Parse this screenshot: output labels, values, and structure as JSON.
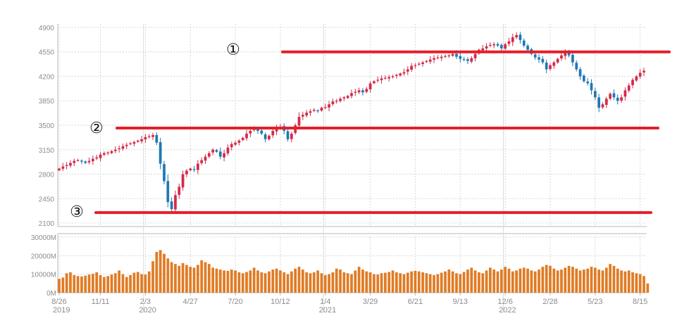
{
  "chart_data": [
    {
      "type": "candlestick",
      "title": "",
      "y_ticks": [
        "4900",
        "4550",
        "4200",
        "3850",
        "3500",
        "3150",
        "2800",
        "2450",
        "2100"
      ],
      "x_ticks": [
        {
          "label": "8/26",
          "year": "2019",
          "i": 0
        },
        {
          "label": "11/11",
          "year": "",
          "i": 11
        },
        {
          "label": "2/3",
          "year": "2020",
          "i": 23
        },
        {
          "label": "4/27",
          "year": "",
          "i": 35
        },
        {
          "label": "7/20",
          "year": "",
          "i": 47
        },
        {
          "label": "10/12",
          "year": "",
          "i": 59
        },
        {
          "label": "1/4",
          "year": "2021",
          "i": 71
        },
        {
          "label": "3/29",
          "year": "",
          "i": 83
        },
        {
          "label": "6/21",
          "year": "",
          "i": 95
        },
        {
          "label": "9/13",
          "year": "",
          "i": 107
        },
        {
          "label": "12/6",
          "year": "2022",
          "i": 119
        },
        {
          "label": "2/28",
          "year": "",
          "i": 131
        },
        {
          "label": "5/23",
          "year": "",
          "i": 143
        },
        {
          "label": "8/15",
          "year": "",
          "i": 155
        }
      ],
      "ylim": [
        2050,
        4950
      ],
      "weekly_close": [
        2880,
        2910,
        2930,
        2960,
        2990,
        3000,
        2980,
        2960,
        2990,
        3020,
        3040,
        3080,
        3100,
        3110,
        3130,
        3150,
        3170,
        3200,
        3220,
        3240,
        3260,
        3280,
        3300,
        3330,
        3340,
        3360,
        3250,
        2950,
        2700,
        2400,
        2300,
        2500,
        2620,
        2800,
        2850,
        2880,
        2860,
        2950,
        3000,
        3050,
        3100,
        3150,
        3120,
        3050,
        3100,
        3180,
        3230,
        3250,
        3280,
        3320,
        3380,
        3420,
        3450,
        3420,
        3380,
        3300,
        3350,
        3420,
        3460,
        3480,
        3420,
        3300,
        3380,
        3500,
        3620,
        3650,
        3680,
        3700,
        3720,
        3710,
        3750,
        3760,
        3800,
        3840,
        3850,
        3880,
        3900,
        3920,
        3960,
        3980,
        4000,
        3970,
        4020,
        4100,
        4130,
        4150,
        4170,
        4180,
        4190,
        4200,
        4220,
        4240,
        4260,
        4300,
        4350,
        4360,
        4380,
        4400,
        4420,
        4440,
        4460,
        4470,
        4480,
        4490,
        4500,
        4520,
        4480,
        4450,
        4440,
        4420,
        4460,
        4520,
        4580,
        4600,
        4630,
        4650,
        4660,
        4640,
        4600,
        4660,
        4700,
        4760,
        4790,
        4720,
        4640,
        4580,
        4520,
        4470,
        4440,
        4400,
        4300,
        4360,
        4400,
        4450,
        4500,
        4540,
        4500,
        4400,
        4300,
        4200,
        4130,
        4100,
        4000,
        3900,
        3750,
        3800,
        3880,
        3950,
        3900,
        3850,
        3900,
        4000,
        4070,
        4150,
        4200,
        4250,
        4280
      ],
      "volume": {
        "y_ticks": [
          "30000M",
          "20000M",
          "10000M",
          "0M"
        ],
        "ylim": [
          0,
          30000
        ],
        "bar_color": "#e07b24",
        "values": [
          7500,
          8200,
          10500,
          11000,
          9500,
          9000,
          8800,
          9200,
          9800,
          10200,
          11000,
          9500,
          8500,
          9000,
          9800,
          10500,
          12000,
          10000,
          8500,
          9500,
          10800,
          11200,
          10000,
          9800,
          11500,
          17000,
          22000,
          23000,
          21000,
          18500,
          16500,
          15500,
          14500,
          16000,
          15000,
          14000,
          13500,
          15000,
          17500,
          16500,
          15500,
          13500,
          13000,
          12500,
          12000,
          11800,
          12500,
          12000,
          11000,
          10500,
          11200,
          12000,
          13500,
          12000,
          11000,
          10500,
          11500,
          12500,
          13000,
          12000,
          11000,
          10000,
          11500,
          13000,
          14000,
          12500,
          11000,
          10500,
          11000,
          12000,
          10500,
          9500,
          10000,
          11000,
          13000,
          12500,
          11000,
          10500,
          10000,
          12000,
          14000,
          12500,
          11500,
          11000,
          10000,
          9800,
          10500,
          10800,
          11200,
          12000,
          11000,
          10500,
          10000,
          10800,
          11500,
          11800,
          11500,
          11000,
          10500,
          10000,
          9500,
          10000,
          10800,
          11500,
          12500,
          11500,
          10500,
          10000,
          11200,
          12500,
          13500,
          12000,
          11000,
          10500,
          12000,
          13500,
          12500,
          11500,
          12500,
          14000,
          13000,
          11500,
          12000,
          13000,
          13500,
          13000,
          12000,
          11500,
          12500,
          14000,
          15000,
          14500,
          13000,
          12000,
          12500,
          13500,
          14500,
          14000,
          13000,
          12000,
          12500,
          13000,
          14000,
          13500,
          12500,
          12000,
          13500,
          15500,
          14500,
          13000,
          12000,
          11500,
          12000,
          11000,
          10500,
          10000,
          9000,
          5000
        ]
      }
    }
  ],
  "annotations": [
    {
      "label": "①",
      "level": 4550
    },
    {
      "label": "②",
      "level": 3460
    },
    {
      "label": "③",
      "level": 2250
    }
  ],
  "colors": {
    "up": "#d42a48",
    "down": "#1f78b4",
    "level_line": "#e31f2a",
    "grid": "#d8d8d8",
    "axis_text": "#8c8c8c"
  }
}
